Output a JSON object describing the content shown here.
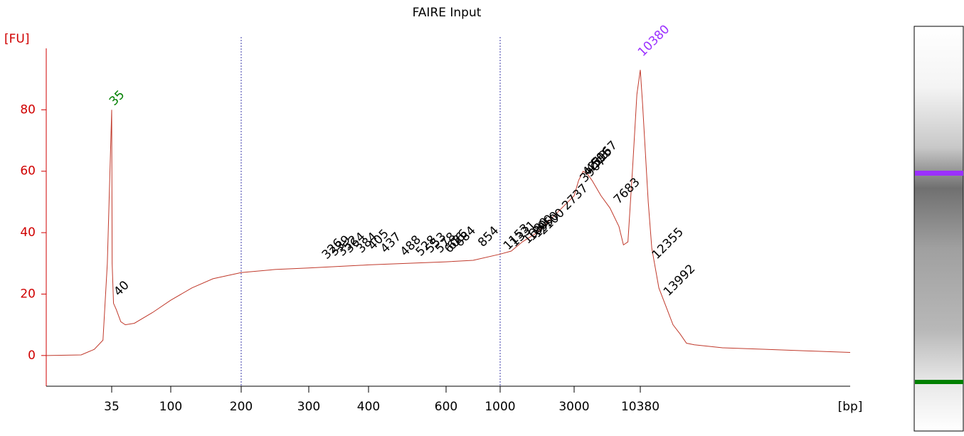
{
  "chart_data": {
    "type": "line",
    "title": "FAIRE Input",
    "y_label": "[FU]",
    "x_label": "[bp]",
    "ylim": [
      -10,
      100
    ],
    "yticks": [
      0,
      20,
      40,
      60,
      80
    ],
    "xlim": [
      20,
      40000
    ],
    "xticks": [
      35,
      100,
      200,
      300,
      400,
      600,
      1000,
      3000,
      10380
    ],
    "vlines": [
      200,
      1000
    ],
    "vline_color": "#3a3aaa",
    "series": [
      {
        "color": "#c0392b",
        "x": [
          20,
          28,
          31,
          33,
          34,
          35,
          35.5,
          37,
          40,
          45,
          50,
          60,
          80,
          100,
          130,
          160,
          200,
          250,
          300,
          400,
          500,
          600,
          800,
          1000,
          1300,
          1600,
          2000,
          2500,
          3000,
          3500,
          4000,
          4500,
          5000,
          6000,
          7000,
          8000,
          8500,
          9000,
          9500,
          10000,
          10380,
          10700,
          11000,
          11500,
          12000,
          13000,
          14000,
          15000,
          16000,
          16900,
          18000,
          22000,
          28000,
          34000,
          40000
        ],
        "values": [
          0,
          0.2,
          2,
          5,
          30,
          80,
          30,
          17,
          15,
          11,
          10,
          10.5,
          14,
          18,
          22,
          25,
          27,
          28,
          28.5,
          29.5,
          30,
          30.5,
          31,
          33,
          34,
          37,
          40,
          46,
          52,
          57,
          60,
          59,
          57,
          52,
          48,
          42,
          36,
          37,
          60,
          85,
          93,
          82,
          70,
          50,
          35,
          22,
          16,
          10,
          7,
          4,
          3.5,
          2.5,
          2,
          1.5,
          1
        ]
      }
    ],
    "markers": {
      "x": [
        35,
        10380
      ],
      "values": [
        82,
        98
      ],
      "colors": [
        "#008000",
        "#9b30ff"
      ]
    },
    "peaks": {
      "color": "#000000",
      "x": [
        40,
        326,
        339,
        352,
        364,
        384,
        405,
        437,
        488,
        528,
        553,
        578,
        606,
        626,
        684,
        854,
        1153,
        1331,
        1680,
        1800,
        1950,
        2100,
        2737,
        3907,
        4213,
        4595,
        5167,
        7683,
        12355,
        13992
      ],
      "values": [
        20,
        32,
        33,
        33,
        34,
        34,
        35,
        34,
        33,
        33,
        34,
        34,
        34,
        35,
        36,
        36,
        35,
        36,
        37,
        38,
        39,
        40,
        48,
        57,
        59,
        60,
        62,
        50,
        32,
        20
      ]
    }
  }
}
